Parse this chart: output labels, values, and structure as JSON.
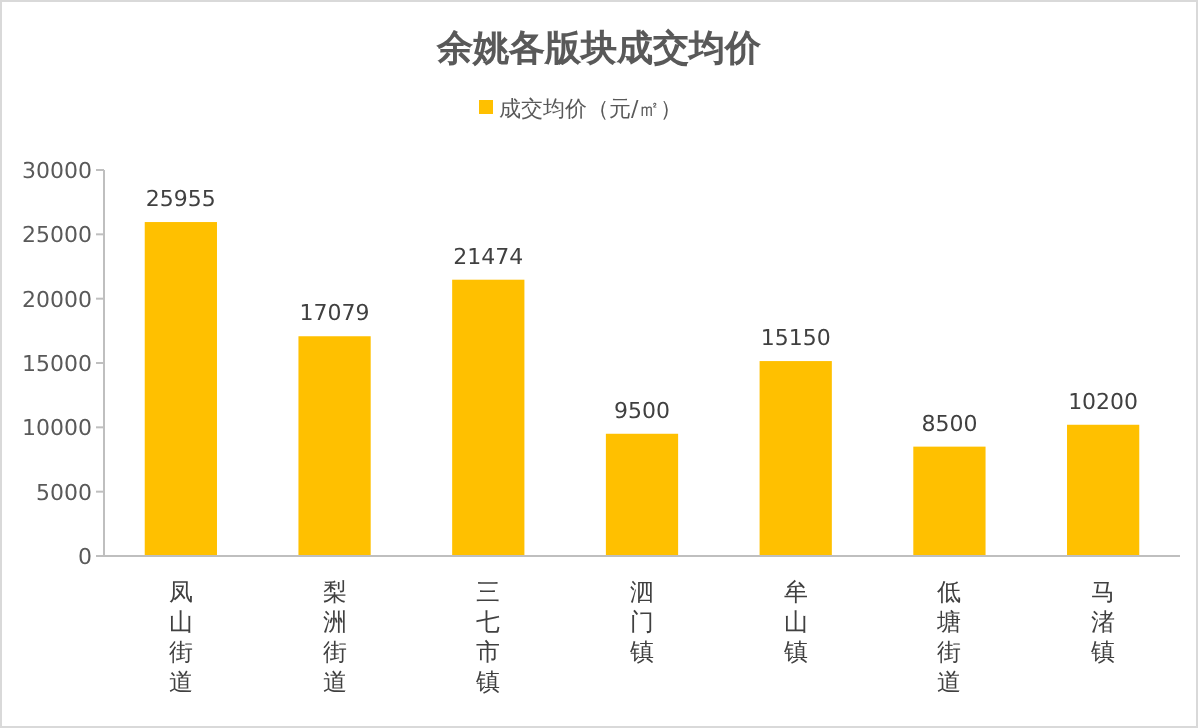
{
  "chart_data": {
    "type": "bar",
    "title": "余姚各版块成交均价",
    "categories": [
      "凤山街道",
      "梨洲街道",
      "三七市镇",
      "泗门镇",
      "牟山镇",
      "低塘街道",
      "马渚镇"
    ],
    "series": [
      {
        "name": "成交均价（元/㎡）",
        "color": "#ffc000",
        "values": [
          25955,
          17079,
          21474,
          9500,
          15150,
          8500,
          10200
        ]
      }
    ],
    "ylim": [
      0,
      30000
    ],
    "yticks": [
      0,
      5000,
      10000,
      15000,
      20000,
      25000,
      30000
    ],
    "data_labels": true,
    "legend": "top"
  }
}
